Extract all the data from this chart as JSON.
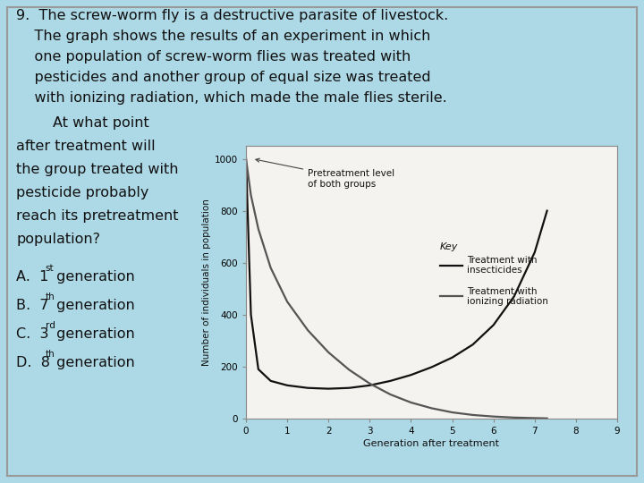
{
  "background_color": "#add8e6",
  "border_color": "#888888",
  "graph_bg": "#f5f3ef",
  "ins_x": [
    0,
    0.12,
    0.3,
    0.6,
    1.0,
    1.5,
    2.0,
    2.5,
    3.0,
    3.5,
    4.0,
    4.5,
    5.0,
    5.5,
    6.0,
    6.5,
    7.0,
    7.3
  ],
  "ins_y": [
    1000,
    400,
    190,
    145,
    128,
    118,
    115,
    118,
    128,
    145,
    168,
    198,
    235,
    285,
    360,
    470,
    640,
    800
  ],
  "rad_x": [
    0,
    0.12,
    0.3,
    0.6,
    1.0,
    1.5,
    2.0,
    2.5,
    3.0,
    3.5,
    4.0,
    4.5,
    5.0,
    5.5,
    6.0,
    6.5,
    7.0,
    7.3
  ],
  "rad_y": [
    1000,
    860,
    730,
    580,
    450,
    340,
    255,
    188,
    135,
    93,
    62,
    40,
    24,
    14,
    8,
    4,
    2,
    1
  ],
  "xlabel": "Generation after treatment",
  "ylabel": "Number of individuals in population",
  "xlim": [
    0,
    9
  ],
  "ylim": [
    0,
    1050
  ],
  "xticks": [
    0,
    1,
    2,
    3,
    4,
    5,
    6,
    7,
    8,
    9
  ],
  "yticks": [
    0,
    200,
    400,
    600,
    800,
    1000
  ],
  "pretreatment_label": "Pretreatment level\nof both groups",
  "key_title": "Key",
  "key_label1": "Treatment with\ninsecticides",
  "key_label2": "Treatment with\nionizing radiation",
  "line_color_ins": "#111111",
  "line_color_rad": "#555555",
  "text_color": "#111111",
  "font_size_body": 11.5,
  "font_size_small": 8.5,
  "title_lines": [
    "9.  The screw-worm fly is a destructive parasite of livestock.",
    "    The graph shows the results of an experiment in which",
    "    one population of screw-worm flies was treated with",
    "    pesticides and another group of equal size was treated",
    "    with ionizing radiation, which made the male flies sterile."
  ],
  "q_lines": [
    "        At what point",
    "after treatment will",
    "the group treated with",
    "pesticide probably",
    "reach its pretreatment",
    "population?"
  ],
  "answers": [
    [
      "A.  1",
      "st",
      " generation"
    ],
    [
      "B.  7",
      "th",
      " generation"
    ],
    [
      "C.  3",
      "rd",
      " generation"
    ],
    [
      "D.  8",
      "th",
      " generation"
    ]
  ]
}
